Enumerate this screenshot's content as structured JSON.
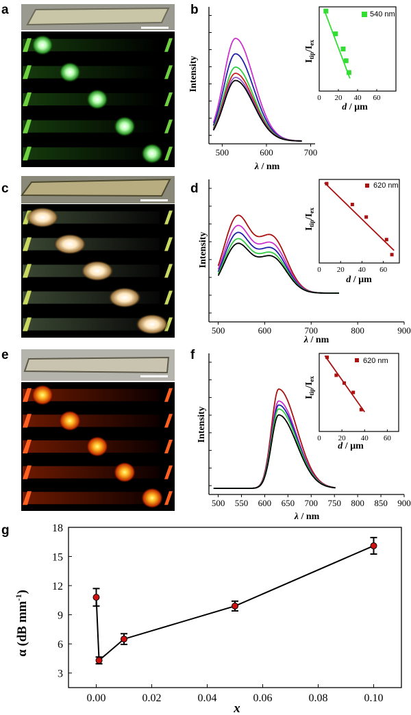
{
  "panel_labels": [
    "a",
    "b",
    "c",
    "d",
    "e",
    "f",
    "g"
  ],
  "chart_data": [
    {
      "panel": "b",
      "type": "line",
      "xlabel_var": "λ",
      "xlabel_unit": " / nm",
      "ylabel": "Intensity",
      "xlim": [
        470,
        710
      ],
      "xticks": [
        500,
        600,
        700
      ],
      "peaks": [
        530
      ],
      "second_peak": null,
      "series": [
        {
          "color": "#cc33cc",
          "height": 1.0
        },
        {
          "color": "#1f1fa8",
          "height": 0.85
        },
        {
          "color": "#33cc44",
          "height": 0.72
        },
        {
          "color": "#cc2222",
          "height": 0.66
        },
        {
          "color": "#9955cc",
          "height": 0.62
        },
        {
          "color": "#000000",
          "height": 0.59
        }
      ],
      "inset": {
        "type": "scatter",
        "xlabel_var": "d",
        "xlabel_unit": " / µm",
        "ylabel_main": "I",
        "ylabel_sub1": "tip",
        "ylabel_mid": "/I",
        "ylabel_sub2": "ex",
        "xlim": [
          0,
          80
        ],
        "xticks": [
          0,
          20,
          40,
          60
        ],
        "legend": "540 nm",
        "color": "#33dd33",
        "marker": "square",
        "x": [
          7,
          17,
          25,
          28,
          31
        ],
        "y": [
          0.95,
          0.68,
          0.5,
          0.36,
          0.22
        ],
        "fit": [
          [
            5,
            0.97
          ],
          [
            32,
            0.15
          ]
        ]
      }
    },
    {
      "panel": "d",
      "type": "line",
      "xlabel_var": "λ",
      "xlabel_unit": " / nm",
      "ylabel": "Intensity",
      "xlim": [
        480,
        900
      ],
      "xticks": [
        500,
        600,
        700,
        800,
        900
      ],
      "peaks": [
        540
      ],
      "second_peak": 615,
      "series": [
        {
          "color": "#aa1111",
          "height": 1.0
        },
        {
          "color": "#cc33cc",
          "height": 0.87
        },
        {
          "color": "#1f1fa8",
          "height": 0.78
        },
        {
          "color": "#33cc44",
          "height": 0.7
        },
        {
          "color": "#000000",
          "height": 0.64
        }
      ],
      "inset": {
        "type": "scatter",
        "xlabel_var": "d",
        "xlabel_unit": " / µm",
        "ylabel_main": "I",
        "ylabel_sub1": "tip",
        "ylabel_mid": "/I",
        "ylabel_sub2": "ex",
        "xlim": [
          0,
          75
        ],
        "xticks": [
          0,
          20,
          40,
          60
        ],
        "legend": "620 nm",
        "color": "#aa1111",
        "marker": "square-small",
        "x": [
          7,
          31,
          44,
          63,
          68
        ],
        "y": [
          0.95,
          0.7,
          0.55,
          0.28,
          0.1
        ],
        "fit": [
          [
            5,
            0.96
          ],
          [
            70,
            0.15
          ]
        ]
      }
    },
    {
      "panel": "f",
      "type": "line",
      "xlabel_var": "λ",
      "xlabel_unit": " / nm",
      "ylabel": "Intensity",
      "xlim": [
        480,
        900
      ],
      "xticks": [
        500,
        550,
        600,
        650,
        700,
        750,
        800,
        850,
        900
      ],
      "peaks": [
        630
      ],
      "second_peak": null,
      "series": [
        {
          "color": "#aa1111",
          "height": 1.0
        },
        {
          "color": "#cc33cc",
          "height": 0.88
        },
        {
          "color": "#1f1fa8",
          "height": 0.84
        },
        {
          "color": "#33cc44",
          "height": 0.8
        },
        {
          "color": "#000000",
          "height": 0.74
        }
      ],
      "inset": {
        "type": "scatter",
        "xlabel_var": "d",
        "xlabel_unit": " / µm",
        "ylabel_main": "I",
        "ylabel_sub1": "tip",
        "ylabel_mid": "/I",
        "ylabel_sub2": "ex",
        "xlim": [
          0,
          70
        ],
        "xticks": [
          0,
          20,
          40,
          60
        ],
        "legend": "620 nm",
        "color": "#aa1111",
        "marker": "square-small",
        "x": [
          7,
          15,
          22,
          30,
          37
        ],
        "y": [
          0.95,
          0.72,
          0.62,
          0.5,
          0.28
        ],
        "fit": [
          [
            5,
            0.97
          ],
          [
            40,
            0.25
          ]
        ]
      }
    },
    {
      "panel": "g",
      "type": "scatter",
      "xlabel": "x",
      "ylabel_main": "α (dB mm",
      "ylabel_sup": "-1",
      "ylabel_end": ")",
      "xlim": [
        -0.01,
        0.11
      ],
      "ylim": [
        1.5,
        18
      ],
      "xticks": [
        "0.00",
        "0.02",
        "0.04",
        "0.06",
        "0.08",
        "0.10"
      ],
      "yticks": [
        3,
        6,
        9,
        12,
        15,
        18
      ],
      "points": [
        {
          "x": 0.0,
          "y": 10.8,
          "err": 0.9
        },
        {
          "x": 0.001,
          "y": 4.3,
          "err": 0.35
        },
        {
          "x": 0.01,
          "y": 6.5,
          "err": 0.55
        },
        {
          "x": 0.05,
          "y": 9.9,
          "err": 0.5
        },
        {
          "x": 0.1,
          "y": 16.1,
          "err": 0.85
        }
      ]
    }
  ]
}
